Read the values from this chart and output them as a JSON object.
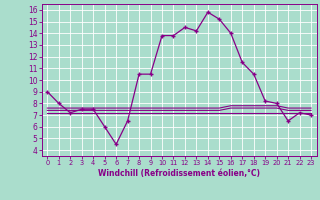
{
  "x": [
    0,
    1,
    2,
    3,
    4,
    5,
    6,
    7,
    8,
    9,
    10,
    11,
    12,
    13,
    14,
    15,
    16,
    17,
    18,
    19,
    20,
    21,
    22,
    23
  ],
  "y_main": [
    9,
    8,
    7.2,
    7.5,
    7.5,
    6.0,
    4.5,
    6.5,
    10.5,
    10.5,
    13.8,
    13.8,
    14.5,
    14.2,
    15.8,
    15.2,
    14.0,
    11.5,
    10.5,
    8.2,
    8.0,
    6.5,
    7.2,
    7.0
  ],
  "y_flat1": [
    7.2,
    7.2,
    7.2,
    7.2,
    7.2,
    7.2,
    7.2,
    7.2,
    7.2,
    7.2,
    7.2,
    7.2,
    7.2,
    7.2,
    7.2,
    7.2,
    7.2,
    7.2,
    7.2,
    7.2,
    7.2,
    7.2,
    7.2,
    7.2
  ],
  "y_flat2": [
    7.4,
    7.4,
    7.4,
    7.4,
    7.4,
    7.4,
    7.4,
    7.4,
    7.4,
    7.4,
    7.4,
    7.4,
    7.4,
    7.4,
    7.4,
    7.4,
    7.6,
    7.6,
    7.6,
    7.6,
    7.6,
    7.4,
    7.4,
    7.4
  ],
  "y_flat3": [
    7.6,
    7.6,
    7.6,
    7.6,
    7.6,
    7.6,
    7.6,
    7.6,
    7.6,
    7.6,
    7.6,
    7.6,
    7.6,
    7.6,
    7.6,
    7.6,
    7.8,
    7.8,
    7.8,
    7.8,
    7.8,
    7.6,
    7.6,
    7.6
  ],
  "line_color": "#880088",
  "bg_color": "#aaddcc",
  "grid_color": "#ffffff",
  "xlabel": "Windchill (Refroidissement éolien,°C)",
  "xlabel_color": "#880088",
  "tick_color": "#880088",
  "ylim": [
    3.5,
    16.5
  ],
  "xlim": [
    -0.5,
    23.5
  ],
  "yticks": [
    4,
    5,
    6,
    7,
    8,
    9,
    10,
    11,
    12,
    13,
    14,
    15,
    16
  ],
  "xticks": [
    0,
    1,
    2,
    3,
    4,
    5,
    6,
    7,
    8,
    9,
    10,
    11,
    12,
    13,
    14,
    15,
    16,
    17,
    18,
    19,
    20,
    21,
    22,
    23
  ]
}
